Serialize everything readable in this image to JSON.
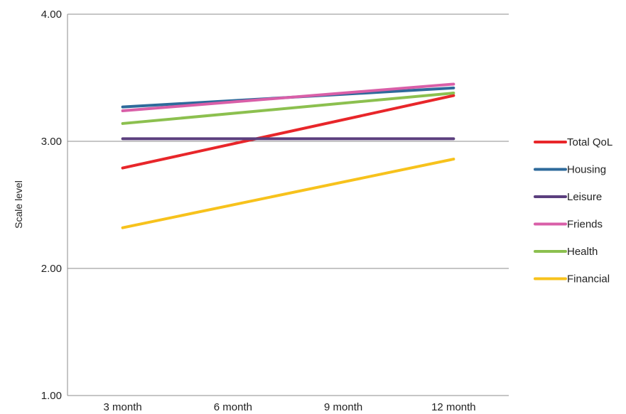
{
  "chart_data": {
    "type": "line",
    "title": "",
    "xlabel": "",
    "ylabel": "Scale level",
    "ylim": [
      1.0,
      4.0
    ],
    "y_ticks": [
      "1.00",
      "2.00",
      "3.00",
      "4.00"
    ],
    "y_tick_values": [
      1,
      2,
      3,
      4
    ],
    "categories": [
      "3 month",
      "6 month",
      "9 month",
      "12 month"
    ],
    "grid": true,
    "legend_position": "right",
    "series": [
      {
        "name": "Total QoL",
        "color": "#e8262a",
        "values": [
          2.79,
          null,
          null,
          3.36
        ]
      },
      {
        "name": "Housing",
        "color": "#2e6a9b",
        "values": [
          3.27,
          null,
          null,
          3.42
        ]
      },
      {
        "name": "Leisure",
        "color": "#5b3f7e",
        "values": [
          3.02,
          null,
          null,
          3.02
        ]
      },
      {
        "name": "Friends",
        "color": "#d95fa8",
        "values": [
          3.24,
          null,
          null,
          3.45
        ]
      },
      {
        "name": "Health",
        "color": "#8cc04f",
        "values": [
          3.14,
          null,
          null,
          3.38
        ]
      },
      {
        "name": "Financial",
        "color": "#f7c21c",
        "values": [
          2.32,
          null,
          null,
          2.86
        ]
      }
    ]
  }
}
